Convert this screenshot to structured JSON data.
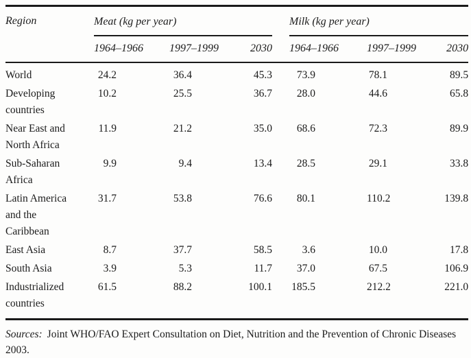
{
  "table": {
    "region_header": "Region",
    "groups": [
      {
        "label": "Meat (kg per year)",
        "years": [
          "1964–1966",
          "1997–1999",
          "2030"
        ]
      },
      {
        "label": "Milk (kg per year)",
        "years": [
          "1964–1966",
          "1997–1999",
          "2030"
        ]
      }
    ],
    "rows": [
      {
        "region": "World",
        "region_lines": [
          "World"
        ],
        "meat": [
          "24.2",
          "36.4",
          "45.3"
        ],
        "milk": [
          "73.9",
          "78.1",
          "89.5"
        ]
      },
      {
        "region": "Developing countries",
        "region_lines": [
          "Developing",
          "countries"
        ],
        "meat": [
          "10.2",
          "25.5",
          "36.7"
        ],
        "milk": [
          "28.0",
          "44.6",
          "65.8"
        ]
      },
      {
        "region": "Near East and North Africa",
        "region_lines": [
          "Near East and",
          "North Africa"
        ],
        "meat": [
          "11.9",
          "21.2",
          "35.0"
        ],
        "milk": [
          "68.6",
          "72.3",
          "89.9"
        ]
      },
      {
        "region": "Sub-Saharan Africa",
        "region_lines": [
          "Sub-Saharan",
          "Africa"
        ],
        "meat": [
          "9.9",
          "9.4",
          "13.4"
        ],
        "milk": [
          "28.5",
          "29.1",
          "33.8"
        ]
      },
      {
        "region": "Latin America and the Caribbean",
        "region_lines": [
          "Latin America",
          "and the",
          "Caribbean"
        ],
        "meat": [
          "31.7",
          "53.8",
          "76.6"
        ],
        "milk": [
          "80.1",
          "110.2",
          "139.8"
        ]
      },
      {
        "region": "East Asia",
        "region_lines": [
          "East Asia"
        ],
        "meat": [
          "8.7",
          "37.7",
          "58.5"
        ],
        "milk": [
          "3.6",
          "10.0",
          "17.8"
        ]
      },
      {
        "region": "South Asia",
        "region_lines": [
          "South Asia"
        ],
        "meat": [
          "3.9",
          "5.3",
          "11.7"
        ],
        "milk": [
          "37.0",
          "67.5",
          "106.9"
        ]
      },
      {
        "region": "Industrialized countries",
        "region_lines": [
          "Industrialized",
          "countries"
        ],
        "meat": [
          "61.5",
          "88.2",
          "100.1"
        ],
        "milk": [
          "185.5",
          "212.2",
          "221.0"
        ]
      }
    ]
  },
  "footer": {
    "label": "Sources:",
    "text": "Joint WHO/FAO Expert Consultation on Diet, Nutrition and the Prevention of Chronic Diseases 2003."
  },
  "colors": {
    "text": "#1b1b1b",
    "rule": "#1a1a1a",
    "background": "#fdfdfc"
  }
}
